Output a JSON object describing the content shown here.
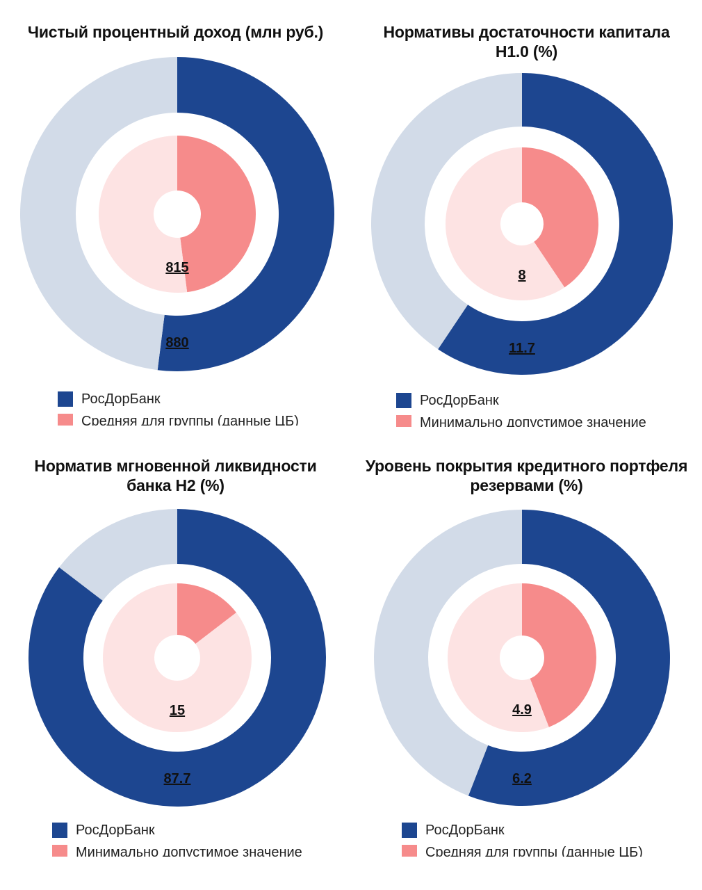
{
  "colors": {
    "outer_main": "#1d4690",
    "outer_rest": "#d2dbe8",
    "inner_main": "#f68b8b",
    "inner_rest": "#fde3e3"
  },
  "chart_data": [
    {
      "type": "pie",
      "title": "Чистый процентный доход (млн руб.)",
      "series": [
        {
          "name": "РосДорБанк",
          "value": 880,
          "fraction": 0.52
        },
        {
          "name": "Средняя для группы (данные ЦБ)",
          "value": 815,
          "fraction": 0.48
        }
      ],
      "legend": [
        "РосДорБанк",
        "Средняя для группы (данные ЦБ)"
      ]
    },
    {
      "type": "pie",
      "title": "Нормативы достаточности капитала\nН1.0 (%)",
      "series": [
        {
          "name": "РосДорБанк",
          "value": 11.7,
          "fraction": 0.594
        },
        {
          "name": "Минимально допустимое значение",
          "value": 8,
          "fraction": 0.406
        }
      ],
      "legend": [
        "РосДорБанк",
        "Минимально допустимое значение"
      ]
    },
    {
      "type": "pie",
      "title": "Норматив мгновенной ликвидности\nбанка Н2 (%)",
      "series": [
        {
          "name": "РосДорБанк",
          "value": 87.7,
          "fraction": 0.854
        },
        {
          "name": "Минимально допустимое значение",
          "value": 15,
          "fraction": 0.146
        }
      ],
      "legend": [
        "РосДорБанк",
        "Минимально допустимое значение"
      ]
    },
    {
      "type": "pie",
      "title": "Уровень покрытия кредитного портфеля\nрезервами (%)",
      "series": [
        {
          "name": "РосДорБанк",
          "value": 6.2,
          "fraction": 0.559
        },
        {
          "name": "Средняя для группы (данные ЦБ)",
          "value": 4.9,
          "fraction": 0.441
        }
      ],
      "legend": [
        "РосДорБанк",
        "Средняя для группы (данные ЦБ)"
      ]
    }
  ]
}
